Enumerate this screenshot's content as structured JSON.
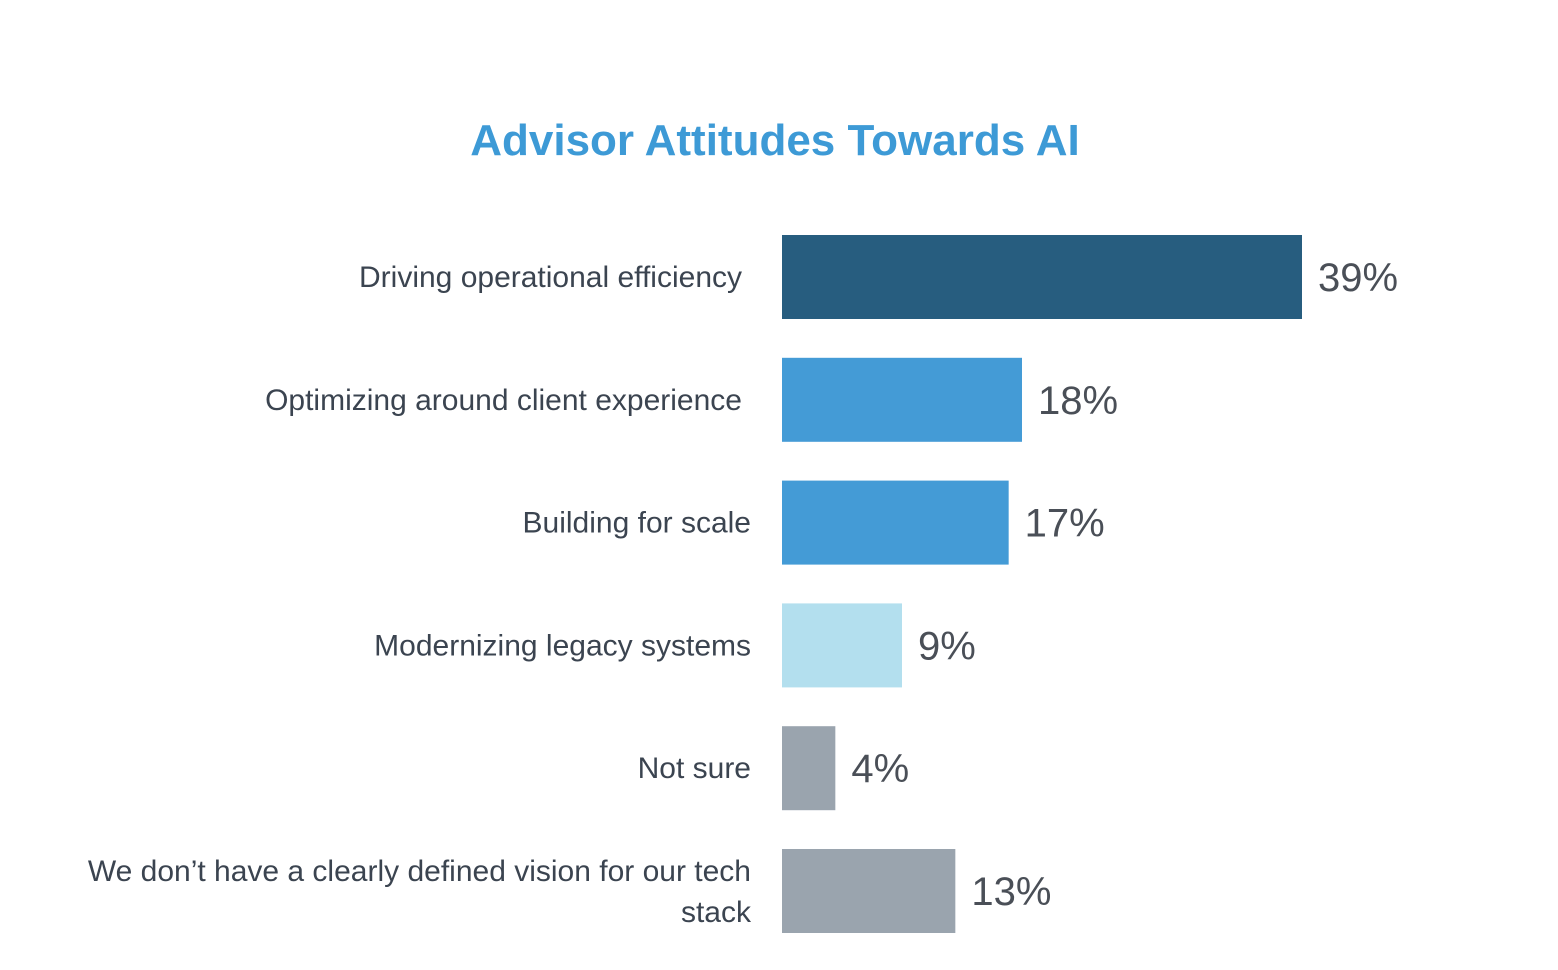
{
  "chart_data": {
    "type": "bar",
    "orientation": "horizontal",
    "title": "Advisor Attitudes Towards AI",
    "categories": [
      [
        "Driving operational efficiency"
      ],
      [
        "Optimizing around client experience"
      ],
      [
        "Building for scale"
      ],
      [
        "Modernizing legacy systems"
      ],
      [
        "Not sure"
      ],
      [
        "We don’t have a clearly defined vision for our tech",
        "stack"
      ]
    ],
    "values": [
      39,
      18,
      17,
      9,
      4,
      13
    ],
    "value_labels": [
      "39%",
      "18%",
      "17%",
      "9%",
      "4%",
      "13%"
    ],
    "colors": [
      "#275d7f",
      "#449bd6",
      "#449bd6",
      "#b3dfee",
      "#9aa4ae",
      "#9aa4ae"
    ],
    "xlabel": "",
    "ylabel": "",
    "xlim": [
      0,
      39
    ],
    "grid": false,
    "legend": "none"
  }
}
